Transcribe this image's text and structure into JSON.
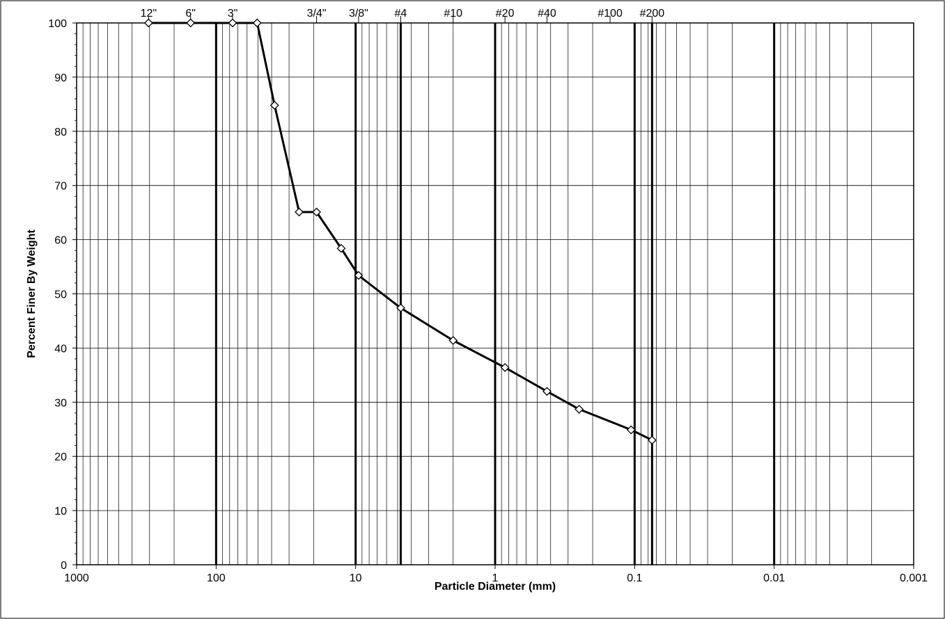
{
  "chart_data": {
    "type": "line",
    "title": "",
    "xlabel": "Particle Diameter (mm)",
    "ylabel": "Percent Finer By Weight",
    "x_scale": "log",
    "x_reversed": true,
    "xlim": [
      1000,
      0.001
    ],
    "ylim": [
      0,
      100
    ],
    "grid": true,
    "legend": "none",
    "x_tick_labels": [
      "1000",
      "100",
      "10",
      "1",
      "0.1",
      "0.01",
      "0.001"
    ],
    "x_ticks": [
      1000,
      100,
      10,
      1,
      0.1,
      0.01,
      0.001
    ],
    "y_tick_labels": [
      "0",
      "10",
      "20",
      "30",
      "40",
      "50",
      "60",
      "70",
      "80",
      "90",
      "100"
    ],
    "y_ticks": [
      0,
      10,
      20,
      30,
      40,
      50,
      60,
      70,
      80,
      90,
      100
    ],
    "sieve_labels": [
      {
        "label": "12\"",
        "x": 304.8
      },
      {
        "label": "6\"",
        "x": 152.4
      },
      {
        "label": "3\"",
        "x": 76.2
      },
      {
        "label": "3/4\"",
        "x": 19.05
      },
      {
        "label": "3/8\"",
        "x": 9.525
      },
      {
        "label": "#4",
        "x": 4.75
      },
      {
        "label": "#10",
        "x": 2.0
      },
      {
        "label": "#20",
        "x": 0.85
      },
      {
        "label": "#40",
        "x": 0.425
      },
      {
        "label": "#100",
        "x": 0.15
      },
      {
        "label": "#200",
        "x": 0.075
      }
    ],
    "heavy_lines": [
      100,
      10,
      4.75,
      1,
      0.1,
      0.075,
      0.01
    ],
    "series": [
      {
        "x": [
          304.8,
          152.4,
          76.2,
          50.8,
          38.1,
          25.4,
          19.05,
          12.7,
          9.525,
          4.75,
          2.0,
          0.85,
          0.425,
          0.25,
          0.106,
          0.075
        ],
        "y": [
          100,
          100,
          100,
          100,
          84.8,
          65.1,
          65.1,
          58.4,
          53.4,
          47.4,
          41.4,
          36.4,
          32.0,
          28.7,
          24.9,
          23.0
        ]
      }
    ],
    "colors": {
      "line": "#000000",
      "marker_fill": "#ffffff",
      "grid": "#000000"
    }
  }
}
